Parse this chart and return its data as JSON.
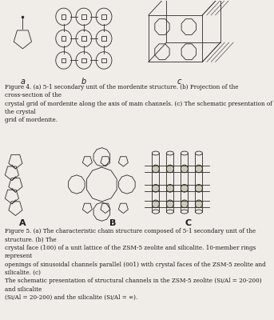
{
  "background_color": "#f0ede8",
  "fig_width": 3.43,
  "fig_height": 4.0,
  "dpi": 100,
  "caption1": "Figure 4. (a) 5-1 secondary unit of the mordenite structure. (b) Projection of the cross-section of the\ncrystal grid of mordenite along the axis of main channels. (c) The schematic presentation of the crystal\ngrid of mordenite.",
  "caption2": "Figure 5. (a) The characteristic chain structure composed of 5-1 secondary unit of the structure. (b) The\ncrystal face (100) of a unit lattice of the ZSM-5 zeolite and silicalite. 10-member rings represent\nopenings of sinusoidal channels parallel (001) with crystal faces of the ZSM-5 zeolite and silicalite. (c)\nThe schematic presentation of structural channels in the ZSM-5 zeolite (Si/Al = 20-200) and silicalite\n(Si/Al = 20-200) and the silicalite (Si/Al = ∞).",
  "label_a": "a",
  "label_b": "b",
  "label_c": "c",
  "label_A": "A",
  "label_B": "B",
  "label_C": "C",
  "caption_fontsize": 5.2,
  "label_fontsize": 7,
  "text_color": "#1a1a1a"
}
